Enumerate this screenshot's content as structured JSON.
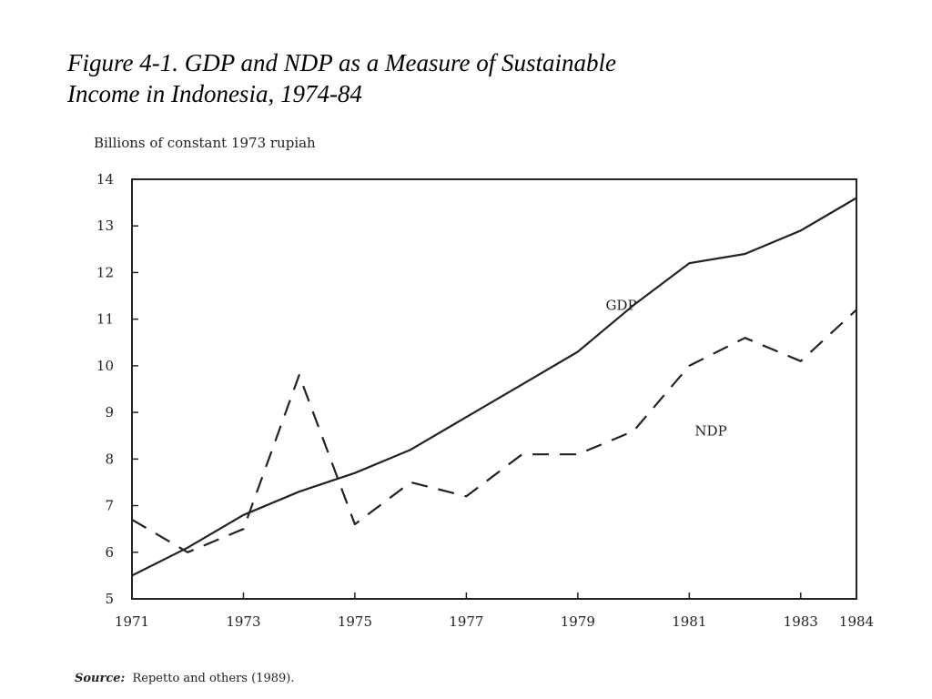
{
  "figure": {
    "title_line1": "Figure 4-1. GDP and NDP as a Measure of Sustainable",
    "title_line2": "Income in Indonesia, 1974-84",
    "source_label": "Source:",
    "source_text": "Repetto and others (1989)."
  },
  "chart_data": {
    "type": "line",
    "ylabel": "Billions of constant 1973 rupiah",
    "xlim": [
      1971,
      1984
    ],
    "ylim": [
      5,
      14
    ],
    "x_ticks": [
      "1971",
      "1973",
      "1975",
      "1977",
      "1979",
      "1981",
      "1983",
      "1984"
    ],
    "y_ticks": [
      "5",
      "6",
      "7",
      "8",
      "9",
      "10",
      "11",
      "12",
      "13",
      "14"
    ],
    "grid": false,
    "series": [
      {
        "name": "GDP",
        "style": "solid",
        "x": [
          1971,
          1972,
          1973,
          1974,
          1975,
          1976,
          1977,
          1978,
          1979,
          1980,
          1981,
          1982,
          1983,
          1984
        ],
        "values": [
          5.5,
          6.1,
          6.8,
          7.3,
          7.7,
          8.2,
          8.9,
          9.6,
          10.3,
          11.3,
          12.2,
          12.4,
          12.9,
          13.6
        ]
      },
      {
        "name": "NDP",
        "style": "dashed",
        "x": [
          1971,
          1972,
          1973,
          1974,
          1975,
          1976,
          1977,
          1978,
          1979,
          1980,
          1981,
          1982,
          1983,
          1984
        ],
        "values": [
          6.7,
          6.0,
          6.5,
          9.8,
          6.6,
          7.5,
          7.2,
          8.1,
          8.1,
          8.6,
          10.0,
          10.6,
          10.1,
          11.2
        ]
      }
    ],
    "annotations": [
      {
        "text": "GDP",
        "x": 1979.5,
        "y": 11.2
      },
      {
        "text": "NDP",
        "x": 1981.1,
        "y": 8.5
      }
    ]
  }
}
